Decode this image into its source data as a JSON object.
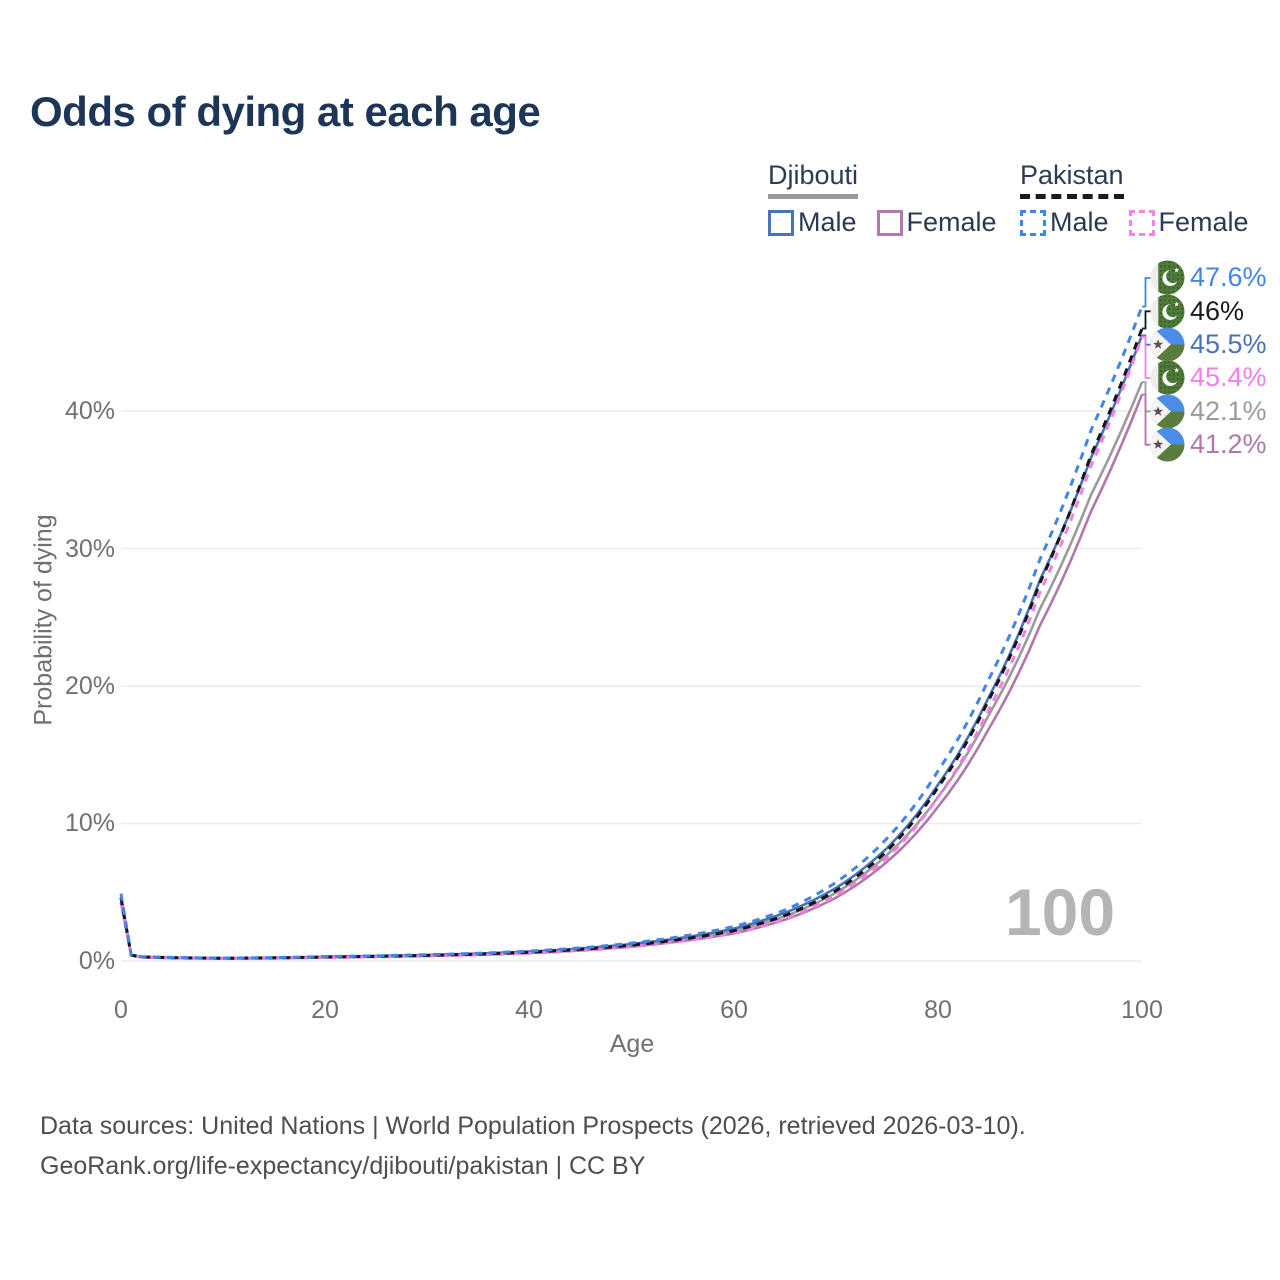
{
  "title": "Odds of dying at each age",
  "watermark_age": "100",
  "legend": {
    "groups": [
      {
        "country": "Djibouti",
        "line_style": "solid",
        "items": [
          {
            "label": "Male",
            "color": "#4a72b8"
          },
          {
            "label": "Female",
            "color": "#b279ad"
          }
        ]
      },
      {
        "country": "Pakistan",
        "line_style": "dashed",
        "items": [
          {
            "label": "Male",
            "color": "#4285e8"
          },
          {
            "label": "Female",
            "color": "#f584e8"
          }
        ]
      }
    ]
  },
  "axes": {
    "x_label": "Age",
    "y_label": "Probability of dying",
    "x_ticks": [
      "0",
      "20",
      "40",
      "60",
      "80",
      "100"
    ],
    "y_ticks": [
      "0%",
      "10%",
      "20%",
      "30%",
      "40%"
    ]
  },
  "footer": {
    "line1": "Data sources: United Nations | World Population Prospects (2026, retrieved 2026-03-10).",
    "line2": "GeoRank.org/life-expectancy/djibouti/pakistan | CC BY"
  },
  "chart_data": {
    "type": "line",
    "title": "Odds of dying at each age",
    "xlabel": "Age",
    "ylabel": "Probability of dying",
    "xlim": [
      0,
      100
    ],
    "ylim_percent": [
      0,
      47.6
    ],
    "x_ticks": [
      0,
      20,
      40,
      60,
      80,
      100
    ],
    "y_ticks_percent": [
      0,
      10,
      20,
      30,
      40
    ],
    "grid": "horizontal",
    "hover_age": 100,
    "ages": [
      0,
      1,
      2,
      5,
      10,
      15,
      20,
      25,
      30,
      35,
      40,
      45,
      50,
      55,
      60,
      65,
      70,
      75,
      80,
      85,
      90,
      95,
      100
    ],
    "series": [
      {
        "name": "Pakistan Male",
        "country": "Pakistan",
        "sex": "male",
        "color": "#4285e8",
        "dashed": true,
        "flag": "pakistan",
        "end_label": "47.6%",
        "values_percent": [
          4.9,
          0.45,
          0.32,
          0.26,
          0.21,
          0.25,
          0.32,
          0.38,
          0.46,
          0.56,
          0.72,
          0.95,
          1.3,
          1.8,
          2.5,
          3.7,
          5.7,
          8.9,
          13.8,
          20.5,
          29.2,
          38.6,
          47.6
        ]
      },
      {
        "name": "Pakistan",
        "country": "Pakistan",
        "sex": "both",
        "color": "#161616",
        "dashed": true,
        "flag": "pakistan",
        "end_label": "46%",
        "values_percent": [
          4.6,
          0.43,
          0.3,
          0.24,
          0.2,
          0.23,
          0.29,
          0.34,
          0.41,
          0.5,
          0.64,
          0.85,
          1.15,
          1.6,
          2.2,
          3.3,
          5.1,
          8.0,
          12.6,
          19.0,
          27.5,
          36.8,
          46.0
        ]
      },
      {
        "name": "Djibouti Male",
        "country": "Djibouti",
        "sex": "male",
        "color": "#4a72b8",
        "dashed": false,
        "flag": "djibouti",
        "end_label": "45.5%",
        "values_percent": [
          4.7,
          0.44,
          0.31,
          0.25,
          0.21,
          0.24,
          0.31,
          0.37,
          0.44,
          0.54,
          0.69,
          0.91,
          1.24,
          1.7,
          2.35,
          3.5,
          5.3,
          8.2,
          12.8,
          19.2,
          27.7,
          36.6,
          45.5
        ]
      },
      {
        "name": "Pakistan Female",
        "country": "Pakistan",
        "sex": "female",
        "color": "#f57de8",
        "dashed": true,
        "flag": "pakistan",
        "end_label": "45.4%",
        "values_percent": [
          4.3,
          0.4,
          0.28,
          0.22,
          0.18,
          0.2,
          0.25,
          0.3,
          0.36,
          0.44,
          0.57,
          0.76,
          1.04,
          1.45,
          2.05,
          3.05,
          4.75,
          7.5,
          11.9,
          18.3,
          26.8,
          36.0,
          45.4
        ]
      },
      {
        "name": "Djibouti",
        "country": "Djibouti",
        "sex": "both",
        "color": "#9b9b9b",
        "dashed": false,
        "flag": "djibouti",
        "end_label": "42.1%",
        "values_percent": [
          4.5,
          0.42,
          0.29,
          0.23,
          0.19,
          0.22,
          0.28,
          0.33,
          0.4,
          0.49,
          0.63,
          0.83,
          1.13,
          1.56,
          2.18,
          3.25,
          4.95,
          7.7,
          11.9,
          17.9,
          25.6,
          33.9,
          42.1
        ]
      },
      {
        "name": "Djibouti Female",
        "country": "Djibouti",
        "sex": "female",
        "color": "#b077ab",
        "dashed": false,
        "flag": "djibouti",
        "end_label": "41.2%",
        "values_percent": [
          4.2,
          0.4,
          0.27,
          0.21,
          0.18,
          0.2,
          0.26,
          0.31,
          0.37,
          0.46,
          0.58,
          0.77,
          1.05,
          1.45,
          2.0,
          3.0,
          4.6,
          7.2,
          11.2,
          16.9,
          24.4,
          32.7,
          41.2
        ]
      }
    ]
  }
}
